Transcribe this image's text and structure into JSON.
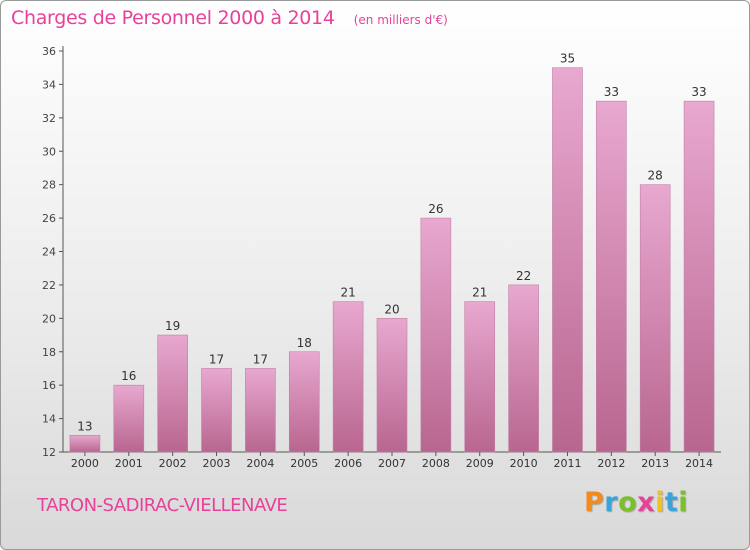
{
  "header": {
    "title": "Charges de Personnel 2000 à 2014",
    "subtitle": "(en milliers d'€)"
  },
  "footer": {
    "commune": "TARON-SADIRAC-VIELLENAVE",
    "logo": [
      "P",
      "r",
      "o",
      "x",
      "i",
      "t",
      "i"
    ],
    "logo_colors": [
      "#f28a1c",
      "#3aa3d8",
      "#7cbf2c",
      "#e8419a",
      "#f2c21c",
      "#3aa3d8",
      "#7cbf2c"
    ]
  },
  "colors": {
    "title": "#e8419a",
    "bar_top": "#e8a8d0",
    "bar_bottom": "#b8668f",
    "axis": "#555555",
    "grid": "#cfcfcf"
  },
  "chart_data": {
    "type": "bar",
    "categories": [
      "2000",
      "2001",
      "2002",
      "2003",
      "2004",
      "2005",
      "2006",
      "2007",
      "2008",
      "2009",
      "2010",
      "2011",
      "2012",
      "2013",
      "2014"
    ],
    "values": [
      13,
      16,
      19,
      17,
      17,
      18,
      21,
      20,
      26,
      21,
      22,
      35,
      33,
      28,
      33
    ],
    "ylim": [
      12,
      36
    ],
    "yticks": [
      12,
      14,
      16,
      18,
      20,
      22,
      24,
      26,
      28,
      30,
      32,
      34,
      36
    ],
    "grid": false,
    "legend": "none"
  }
}
